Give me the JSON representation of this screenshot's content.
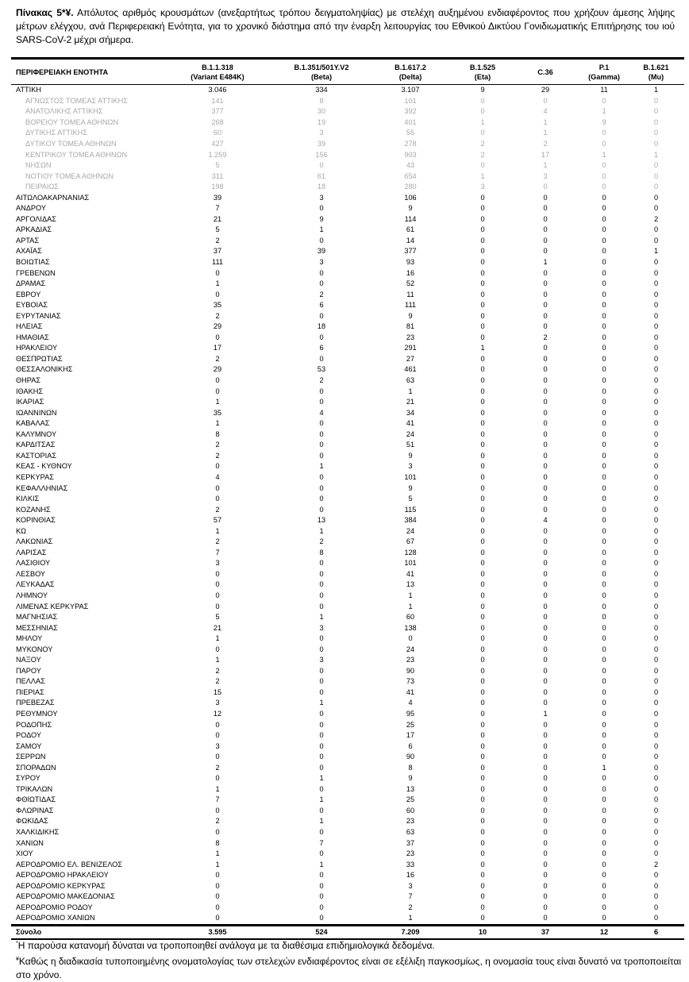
{
  "title": {
    "label": "Πίνακας 5*¥.",
    "text": " Απόλυτος αριθμός κρουσμάτων (ανεξαρτήτως τρόπου δειγματοληψίας) με στελέχη αυξημένου ενδιαφέροντος που χρήζουν άμεσης λήψης μέτρων ελέγχου, ανά Περιφερειακή Ενότητα, για το χρονικό διάστημα από την έναρξη λειτουργίας του Εθνικού Δικτύου Γονιδιωματικής Επιτήρησης του ιού SARS-CoV-2 μέχρι σήμερα."
  },
  "table": {
    "headers": [
      {
        "l1": "ΠΕΡΙΦΕΡΕΙΑΚΗ ΕΝΟΤΗΤΑ",
        "l2": ""
      },
      {
        "l1": "B.1.1.318",
        "l2": "(Variant E484K)"
      },
      {
        "l1": "B.1.351/501Y.V2",
        "l2": "(Beta)"
      },
      {
        "l1": "B.1.617.2",
        "l2": "(Delta)"
      },
      {
        "l1": "B.1.525",
        "l2": "(Eta)"
      },
      {
        "l1": "C.36",
        "l2": ""
      },
      {
        "l1": "P.1",
        "l2": "(Gamma)"
      },
      {
        "l1": "B.1.621",
        "l2": "(Mu)"
      }
    ],
    "rows": [
      {
        "cells": [
          "ΑΤΤΙΚΗ",
          "3.046",
          "334",
          "3.107",
          "9",
          "29",
          "11",
          "1"
        ]
      },
      {
        "sub": true,
        "cells": [
          "ΑΓΝΩΣΤΟΣ ΤΟΜΕΑΣ ΑΤΤΙΚΗΣ",
          "141",
          "8",
          "101",
          "0",
          "0",
          "0",
          "0"
        ]
      },
      {
        "sub": true,
        "cells": [
          "ΑΝΑΤΟΛΙΚΗΣ ΑΤΤΙΚΗΣ",
          "377",
          "30",
          "392",
          "0",
          "4",
          "1",
          "0"
        ]
      },
      {
        "sub": true,
        "cells": [
          "ΒΟΡΕΙΟΥ ΤΟΜΕΑ ΑΘΗΝΩΝ",
          "268",
          "19",
          "401",
          "1",
          "1",
          "9",
          "0"
        ]
      },
      {
        "sub": true,
        "cells": [
          "ΔΥΤΙΚΗΣ ΑΤΤΙΚΗΣ",
          "60",
          "3",
          "55",
          "0",
          "1",
          "0",
          "0"
        ]
      },
      {
        "sub": true,
        "cells": [
          "ΔΥΤΙΚΟΥ ΤΟΜΕΑ ΑΘΗΝΩΝ",
          "427",
          "39",
          "278",
          "2",
          "2",
          "0",
          "0"
        ]
      },
      {
        "sub": true,
        "cells": [
          "ΚΕΝΤΡΙΚΟΥ ΤΟΜΕΑ ΑΘΗΝΩΝ",
          "1.259",
          "156",
          "903",
          "2",
          "17",
          "1",
          "1"
        ]
      },
      {
        "sub": true,
        "cells": [
          "ΝΗΣΩΝ",
          "5",
          "0",
          "43",
          "0",
          "1",
          "0",
          "0"
        ]
      },
      {
        "sub": true,
        "cells": [
          "ΝΟΤΙΟΥ ΤΟΜΕΑ ΑΘΗΝΩΝ",
          "311",
          "61",
          "654",
          "1",
          "3",
          "0",
          "0"
        ]
      },
      {
        "sub": true,
        "cells": [
          "ΠΕΙΡΑΙΩΣ",
          "198",
          "18",
          "280",
          "3",
          "0",
          "0",
          "0"
        ]
      },
      {
        "cells": [
          "ΑΙΤΩΛΟΑΚΑΡΝΑΝΙΑΣ",
          "39",
          "3",
          "106",
          "0",
          "0",
          "0",
          "0"
        ]
      },
      {
        "cells": [
          "ΑΝΔΡΟΥ",
          "7",
          "0",
          "9",
          "0",
          "0",
          "0",
          "0"
        ]
      },
      {
        "cells": [
          "ΑΡΓΟΛΙΔΑΣ",
          "21",
          "9",
          "114",
          "0",
          "0",
          "0",
          "2"
        ]
      },
      {
        "cells": [
          "ΑΡΚΑΔΙΑΣ",
          "5",
          "1",
          "61",
          "0",
          "0",
          "0",
          "0"
        ]
      },
      {
        "cells": [
          "ΑΡΤΑΣ",
          "2",
          "0",
          "14",
          "0",
          "0",
          "0",
          "0"
        ]
      },
      {
        "cells": [
          "ΑΧΑΪΑΣ",
          "37",
          "39",
          "377",
          "0",
          "0",
          "0",
          "1"
        ]
      },
      {
        "cells": [
          "ΒΟΙΩΤΙΑΣ",
          "111",
          "3",
          "93",
          "0",
          "1",
          "0",
          "0"
        ]
      },
      {
        "cells": [
          "ΓΡΕΒΕΝΩΝ",
          "0",
          "0",
          "16",
          "0",
          "0",
          "0",
          "0"
        ]
      },
      {
        "cells": [
          "ΔΡΑΜΑΣ",
          "1",
          "0",
          "52",
          "0",
          "0",
          "0",
          "0"
        ]
      },
      {
        "cells": [
          "ΕΒΡΟΥ",
          "0",
          "2",
          "11",
          "0",
          "0",
          "0",
          "0"
        ]
      },
      {
        "cells": [
          "ΕΥΒΟΙΑΣ",
          "35",
          "6",
          "111",
          "0",
          "0",
          "0",
          "0"
        ]
      },
      {
        "cells": [
          "ΕΥΡΥΤΑΝΙΑΣ",
          "2",
          "0",
          "9",
          "0",
          "0",
          "0",
          "0"
        ]
      },
      {
        "cells": [
          "ΗΛΕΙΑΣ",
          "29",
          "18",
          "81",
          "0",
          "0",
          "0",
          "0"
        ]
      },
      {
        "cells": [
          "ΗΜΑΘΙΑΣ",
          "0",
          "0",
          "23",
          "0",
          "2",
          "0",
          "0"
        ]
      },
      {
        "cells": [
          "ΗΡΑΚΛΕΙΟΥ",
          "17",
          "6",
          "291",
          "1",
          "0",
          "0",
          "0"
        ]
      },
      {
        "cells": [
          "ΘΕΣΠΡΩΤΙΑΣ",
          "2",
          "0",
          "27",
          "0",
          "0",
          "0",
          "0"
        ]
      },
      {
        "cells": [
          "ΘΕΣΣΑΛΟΝΙΚΗΣ",
          "29",
          "53",
          "461",
          "0",
          "0",
          "0",
          "0"
        ]
      },
      {
        "cells": [
          "ΘΗΡΑΣ",
          "0",
          "2",
          "63",
          "0",
          "0",
          "0",
          "0"
        ]
      },
      {
        "cells": [
          "ΙΘΑΚΗΣ",
          "0",
          "0",
          "1",
          "0",
          "0",
          "0",
          "0"
        ]
      },
      {
        "cells": [
          "ΙΚΑΡΙΑΣ",
          "1",
          "0",
          "21",
          "0",
          "0",
          "0",
          "0"
        ]
      },
      {
        "cells": [
          "ΙΩΑΝΝΙΝΩΝ",
          "35",
          "4",
          "34",
          "0",
          "0",
          "0",
          "0"
        ]
      },
      {
        "cells": [
          "ΚΑΒΑΛΑΣ",
          "1",
          "0",
          "41",
          "0",
          "0",
          "0",
          "0"
        ]
      },
      {
        "cells": [
          "ΚΑΛΥΜΝΟΥ",
          "8",
          "0",
          "24",
          "0",
          "0",
          "0",
          "0"
        ]
      },
      {
        "cells": [
          "ΚΑΡΔΙΤΣΑΣ",
          "2",
          "0",
          "51",
          "0",
          "0",
          "0",
          "0"
        ]
      },
      {
        "cells": [
          "ΚΑΣΤΟΡΙΑΣ",
          "2",
          "0",
          "9",
          "0",
          "0",
          "0",
          "0"
        ]
      },
      {
        "cells": [
          "ΚΕΑΣ - ΚΥΘΝΟΥ",
          "0",
          "1",
          "3",
          "0",
          "0",
          "0",
          "0"
        ]
      },
      {
        "cells": [
          "ΚΕΡΚΥΡΑΣ",
          "4",
          "0",
          "101",
          "0",
          "0",
          "0",
          "0"
        ]
      },
      {
        "cells": [
          "ΚΕΦΑΛΛΗΝΙΑΣ",
          "0",
          "0",
          "9",
          "0",
          "0",
          "0",
          "0"
        ]
      },
      {
        "cells": [
          "ΚΙΛΚΙΣ",
          "0",
          "0",
          "5",
          "0",
          "0",
          "0",
          "0"
        ]
      },
      {
        "cells": [
          "ΚΟΖΑΝΗΣ",
          "2",
          "0",
          "115",
          "0",
          "0",
          "0",
          "0"
        ]
      },
      {
        "cells": [
          "ΚΟΡΙΝΘΙΑΣ",
          "57",
          "13",
          "384",
          "0",
          "4",
          "0",
          "0"
        ]
      },
      {
        "cells": [
          "ΚΩ",
          "1",
          "1",
          "24",
          "0",
          "0",
          "0",
          "0"
        ]
      },
      {
        "cells": [
          "ΛΑΚΩΝΙΑΣ",
          "2",
          "2",
          "67",
          "0",
          "0",
          "0",
          "0"
        ]
      },
      {
        "cells": [
          "ΛΑΡΙΣΑΣ",
          "7",
          "8",
          "128",
          "0",
          "0",
          "0",
          "0"
        ]
      },
      {
        "cells": [
          "ΛΑΣΙΘΙΟΥ",
          "3",
          "0",
          "101",
          "0",
          "0",
          "0",
          "0"
        ]
      },
      {
        "cells": [
          "ΛΕΣΒΟΥ",
          "0",
          "0",
          "41",
          "0",
          "0",
          "0",
          "0"
        ]
      },
      {
        "cells": [
          "ΛΕΥΚΑΔΑΣ",
          "0",
          "0",
          "13",
          "0",
          "0",
          "0",
          "0"
        ]
      },
      {
        "cells": [
          "ΛΗΜΝΟΥ",
          "0",
          "0",
          "1",
          "0",
          "0",
          "0",
          "0"
        ]
      },
      {
        "cells": [
          "ΛΙΜΕΝΑΣ ΚΕΡΚΥΡΑΣ",
          "0",
          "0",
          "1",
          "0",
          "0",
          "0",
          "0"
        ]
      },
      {
        "cells": [
          "ΜΑΓΝΗΣΙΑΣ",
          "5",
          "1",
          "60",
          "0",
          "0",
          "0",
          "0"
        ]
      },
      {
        "cells": [
          "ΜΕΣΣΗΝΙΑΣ",
          "21",
          "3",
          "138",
          "0",
          "0",
          "0",
          "0"
        ]
      },
      {
        "cells": [
          "ΜΗΛΟΥ",
          "1",
          "0",
          "0",
          "0",
          "0",
          "0",
          "0"
        ]
      },
      {
        "cells": [
          "ΜΥΚΟΝΟΥ",
          "0",
          "0",
          "24",
          "0",
          "0",
          "0",
          "0"
        ]
      },
      {
        "cells": [
          "ΝΑΞΟΥ",
          "1",
          "3",
          "23",
          "0",
          "0",
          "0",
          "0"
        ]
      },
      {
        "cells": [
          "ΠΑΡΟΥ",
          "2",
          "0",
          "90",
          "0",
          "0",
          "0",
          "0"
        ]
      },
      {
        "cells": [
          "ΠΕΛΛΑΣ",
          "2",
          "0",
          "73",
          "0",
          "0",
          "0",
          "0"
        ]
      },
      {
        "cells": [
          "ΠΙΕΡΙΑΣ",
          "15",
          "0",
          "41",
          "0",
          "0",
          "0",
          "0"
        ]
      },
      {
        "cells": [
          "ΠΡΕΒΕΖΑΣ",
          "3",
          "1",
          "4",
          "0",
          "0",
          "0",
          "0"
        ]
      },
      {
        "cells": [
          "ΡΕΘΥΜΝΟΥ",
          "12",
          "0",
          "95",
          "0",
          "1",
          "0",
          "0"
        ]
      },
      {
        "cells": [
          "ΡΟΔΟΠΗΣ",
          "0",
          "0",
          "25",
          "0",
          "0",
          "0",
          "0"
        ]
      },
      {
        "cells": [
          "ΡΟΔΟΥ",
          "0",
          "0",
          "17",
          "0",
          "0",
          "0",
          "0"
        ]
      },
      {
        "cells": [
          "ΣΑΜΟΥ",
          "3",
          "0",
          "6",
          "0",
          "0",
          "0",
          "0"
        ]
      },
      {
        "cells": [
          "ΣΕΡΡΩΝ",
          "0",
          "0",
          "90",
          "0",
          "0",
          "0",
          "0"
        ]
      },
      {
        "cells": [
          "ΣΠΟΡΑΔΩΝ",
          "2",
          "0",
          "8",
          "0",
          "0",
          "1",
          "0"
        ]
      },
      {
        "cells": [
          "ΣΥΡΟΥ",
          "0",
          "1",
          "9",
          "0",
          "0",
          "0",
          "0"
        ]
      },
      {
        "cells": [
          "ΤΡΙΚΑΛΩΝ",
          "1",
          "0",
          "13",
          "0",
          "0",
          "0",
          "0"
        ]
      },
      {
        "cells": [
          "ΦΘΙΩΤΙΔΑΣ",
          "7",
          "1",
          "25",
          "0",
          "0",
          "0",
          "0"
        ]
      },
      {
        "cells": [
          "ΦΛΩΡΙΝΑΣ",
          "0",
          "0",
          "60",
          "0",
          "0",
          "0",
          "0"
        ]
      },
      {
        "cells": [
          "ΦΩΚΙΔΑΣ",
          "2",
          "1",
          "23",
          "0",
          "0",
          "0",
          "0"
        ]
      },
      {
        "cells": [
          "ΧΑΛΚΙΔΙΚΗΣ",
          "0",
          "0",
          "63",
          "0",
          "0",
          "0",
          "0"
        ]
      },
      {
        "cells": [
          "ΧΑΝΙΩΝ",
          "8",
          "7",
          "37",
          "0",
          "0",
          "0",
          "0"
        ]
      },
      {
        "cells": [
          "ΧΙΟΥ",
          "1",
          "0",
          "23",
          "0",
          "0",
          "0",
          "0"
        ]
      },
      {
        "cells": [
          "ΑΕΡΟΔΡΟΜΙΟ ΕΛ. ΒΕΝΙΖΕΛΟΣ",
          "1",
          "1",
          "33",
          "0",
          "0",
          "0",
          "2"
        ]
      },
      {
        "cells": [
          "ΑΕΡΟΔΡΟΜΙΟ ΗΡΑΚΛΕΙΟΥ",
          "0",
          "0",
          "16",
          "0",
          "0",
          "0",
          "0"
        ]
      },
      {
        "cells": [
          "ΑΕΡΟΔΡΟΜΙΟ ΚΕΡΚΥΡΑΣ",
          "0",
          "0",
          "3",
          "0",
          "0",
          "0",
          "0"
        ]
      },
      {
        "cells": [
          "ΑΕΡΟΔΡΟΜΙΟ ΜΑΚΕΔΟΝΙΑΣ",
          "0",
          "0",
          "7",
          "0",
          "0",
          "0",
          "0"
        ]
      },
      {
        "cells": [
          "ΑΕΡΟΔΡΟΜΙΟ ΡΟΔΟΥ",
          "0",
          "0",
          "2",
          "0",
          "0",
          "0",
          "0"
        ]
      },
      {
        "cells": [
          "ΑΕΡΟΔΡΟΜΙΟ ΧΑΝΙΩΝ",
          "0",
          "0",
          "1",
          "0",
          "0",
          "0",
          "0"
        ]
      }
    ],
    "total": [
      "Σύνολο",
      "3.595",
      "524",
      "7.209",
      "10",
      "37",
      "12",
      "6"
    ]
  },
  "notes": {
    "n1_mark": "*",
    "n1": "Η παρούσα κατανομή δύναται να τροποποιηθεί ανάλογα με τα διαθέσιμα επιδημιολογικά δεδομένα.",
    "n2_mark": "¥",
    "n2": "Καθώς η διαδικασία τυποποιημένης ονοματολογίας των στελεχών ενδιαφέροντος είναι σε εξέλιξη παγκοσμίως, η ονομασία τους είναι δυνατό να τροποποιείται στο χρόνο."
  }
}
